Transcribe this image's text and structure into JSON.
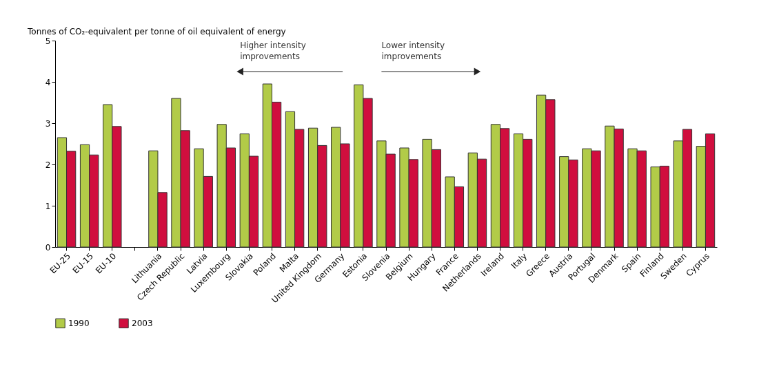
{
  "chart_data": {
    "type": "bar",
    "ylabel": "Tonnes of CO₂-equivalent per tonne of oil equivalent of energy",
    "categories": [
      "EU-25",
      "EU-15",
      "EU-10",
      null,
      "Lithuania",
      "Czech Republic",
      "Latvia",
      "Luxembourg",
      "Slovakia",
      "Poland",
      "Malta",
      "United Kingdom",
      "Germany",
      "Estonia",
      "Slovenia",
      "Belgium",
      "Hungary",
      "France",
      "Netherlands",
      "Ireland",
      "Italy",
      "Greece",
      "Austria",
      "Portugal",
      "Denmark",
      "Spain",
      "Finland",
      "Sweden",
      "Cyprus"
    ],
    "series": [
      {
        "name": "1990",
        "color": "#b2cb48",
        "values": [
          2.65,
          2.48,
          3.45,
          null,
          2.33,
          3.6,
          2.38,
          2.97,
          2.74,
          3.95,
          3.28,
          2.88,
          2.9,
          3.93,
          2.57,
          2.4,
          2.61,
          1.7,
          2.28,
          2.97,
          2.74,
          3.68,
          2.19,
          2.38,
          2.93,
          2.38,
          1.94,
          2.57,
          2.44
        ]
      },
      {
        "name": "2003",
        "color": "#d00e3e",
        "values": [
          2.32,
          2.23,
          2.92,
          null,
          1.32,
          2.82,
          1.71,
          2.4,
          2.2,
          3.51,
          2.85,
          2.46,
          2.5,
          3.6,
          2.25,
          2.12,
          2.36,
          1.46,
          2.13,
          2.87,
          2.61,
          3.57,
          2.11,
          2.33,
          2.86,
          2.33,
          1.96,
          2.85,
          2.74
        ]
      }
    ],
    "ylim": [
      0,
      5
    ],
    "yticks": [
      0,
      1,
      2,
      3,
      4,
      5
    ],
    "annotations": [
      "Higher intensity\nimprovements",
      "Lower intensity\nimprovements"
    ],
    "grid": false,
    "legend": "bottom left"
  }
}
